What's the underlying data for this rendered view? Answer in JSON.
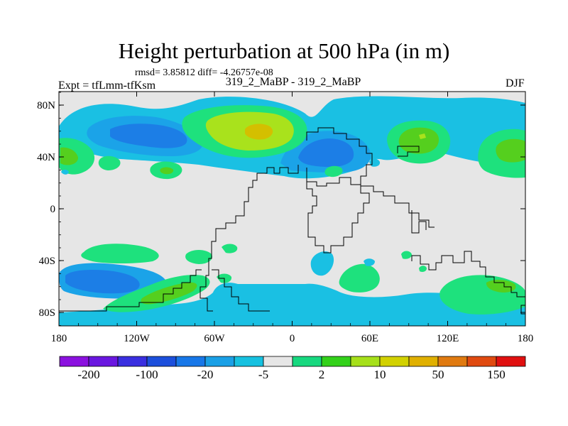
{
  "title": "Height perturbation at 500 hPa (in m)",
  "stats": "rmsd= 3.85812 diff= -4.26757e-08",
  "experiment": "Expt = tfLmm-tfKsm",
  "subtitle": "319_2_MaBP - 319_2_MaBP",
  "season": "DJF",
  "map": {
    "lat_ticks": [
      "80N",
      "40N",
      "0",
      "40S",
      "80S"
    ],
    "lon_ticks": [
      "180",
      "120W",
      "60W",
      "0",
      "60E",
      "120E",
      "180"
    ]
  },
  "colorbar": {
    "labels": [
      "-200",
      "-100",
      "-20",
      "-5",
      "2",
      "10",
      "50",
      "150"
    ],
    "colors": [
      "#8b11df",
      "#6a17e0",
      "#3a2fe0",
      "#1c4fdc",
      "#1777e8",
      "#1aa0e6",
      "#16c1e0",
      "#e6e6e6",
      "#17d87f",
      "#33d11a",
      "#a6e01a",
      "#d2d100",
      "#e0b000",
      "#e07a10",
      "#e04a10",
      "#e01010"
    ]
  },
  "field_colors": {
    "background": "#e6e6e6",
    "cyan": "#1ac0e3",
    "light_blue": "#1ba3e8",
    "blue": "#1c7ee6",
    "green": "#1ee17d",
    "lime_green": "#55cf1e",
    "yellow_green": "#a9e21c",
    "gold": "#d4bf00"
  }
}
